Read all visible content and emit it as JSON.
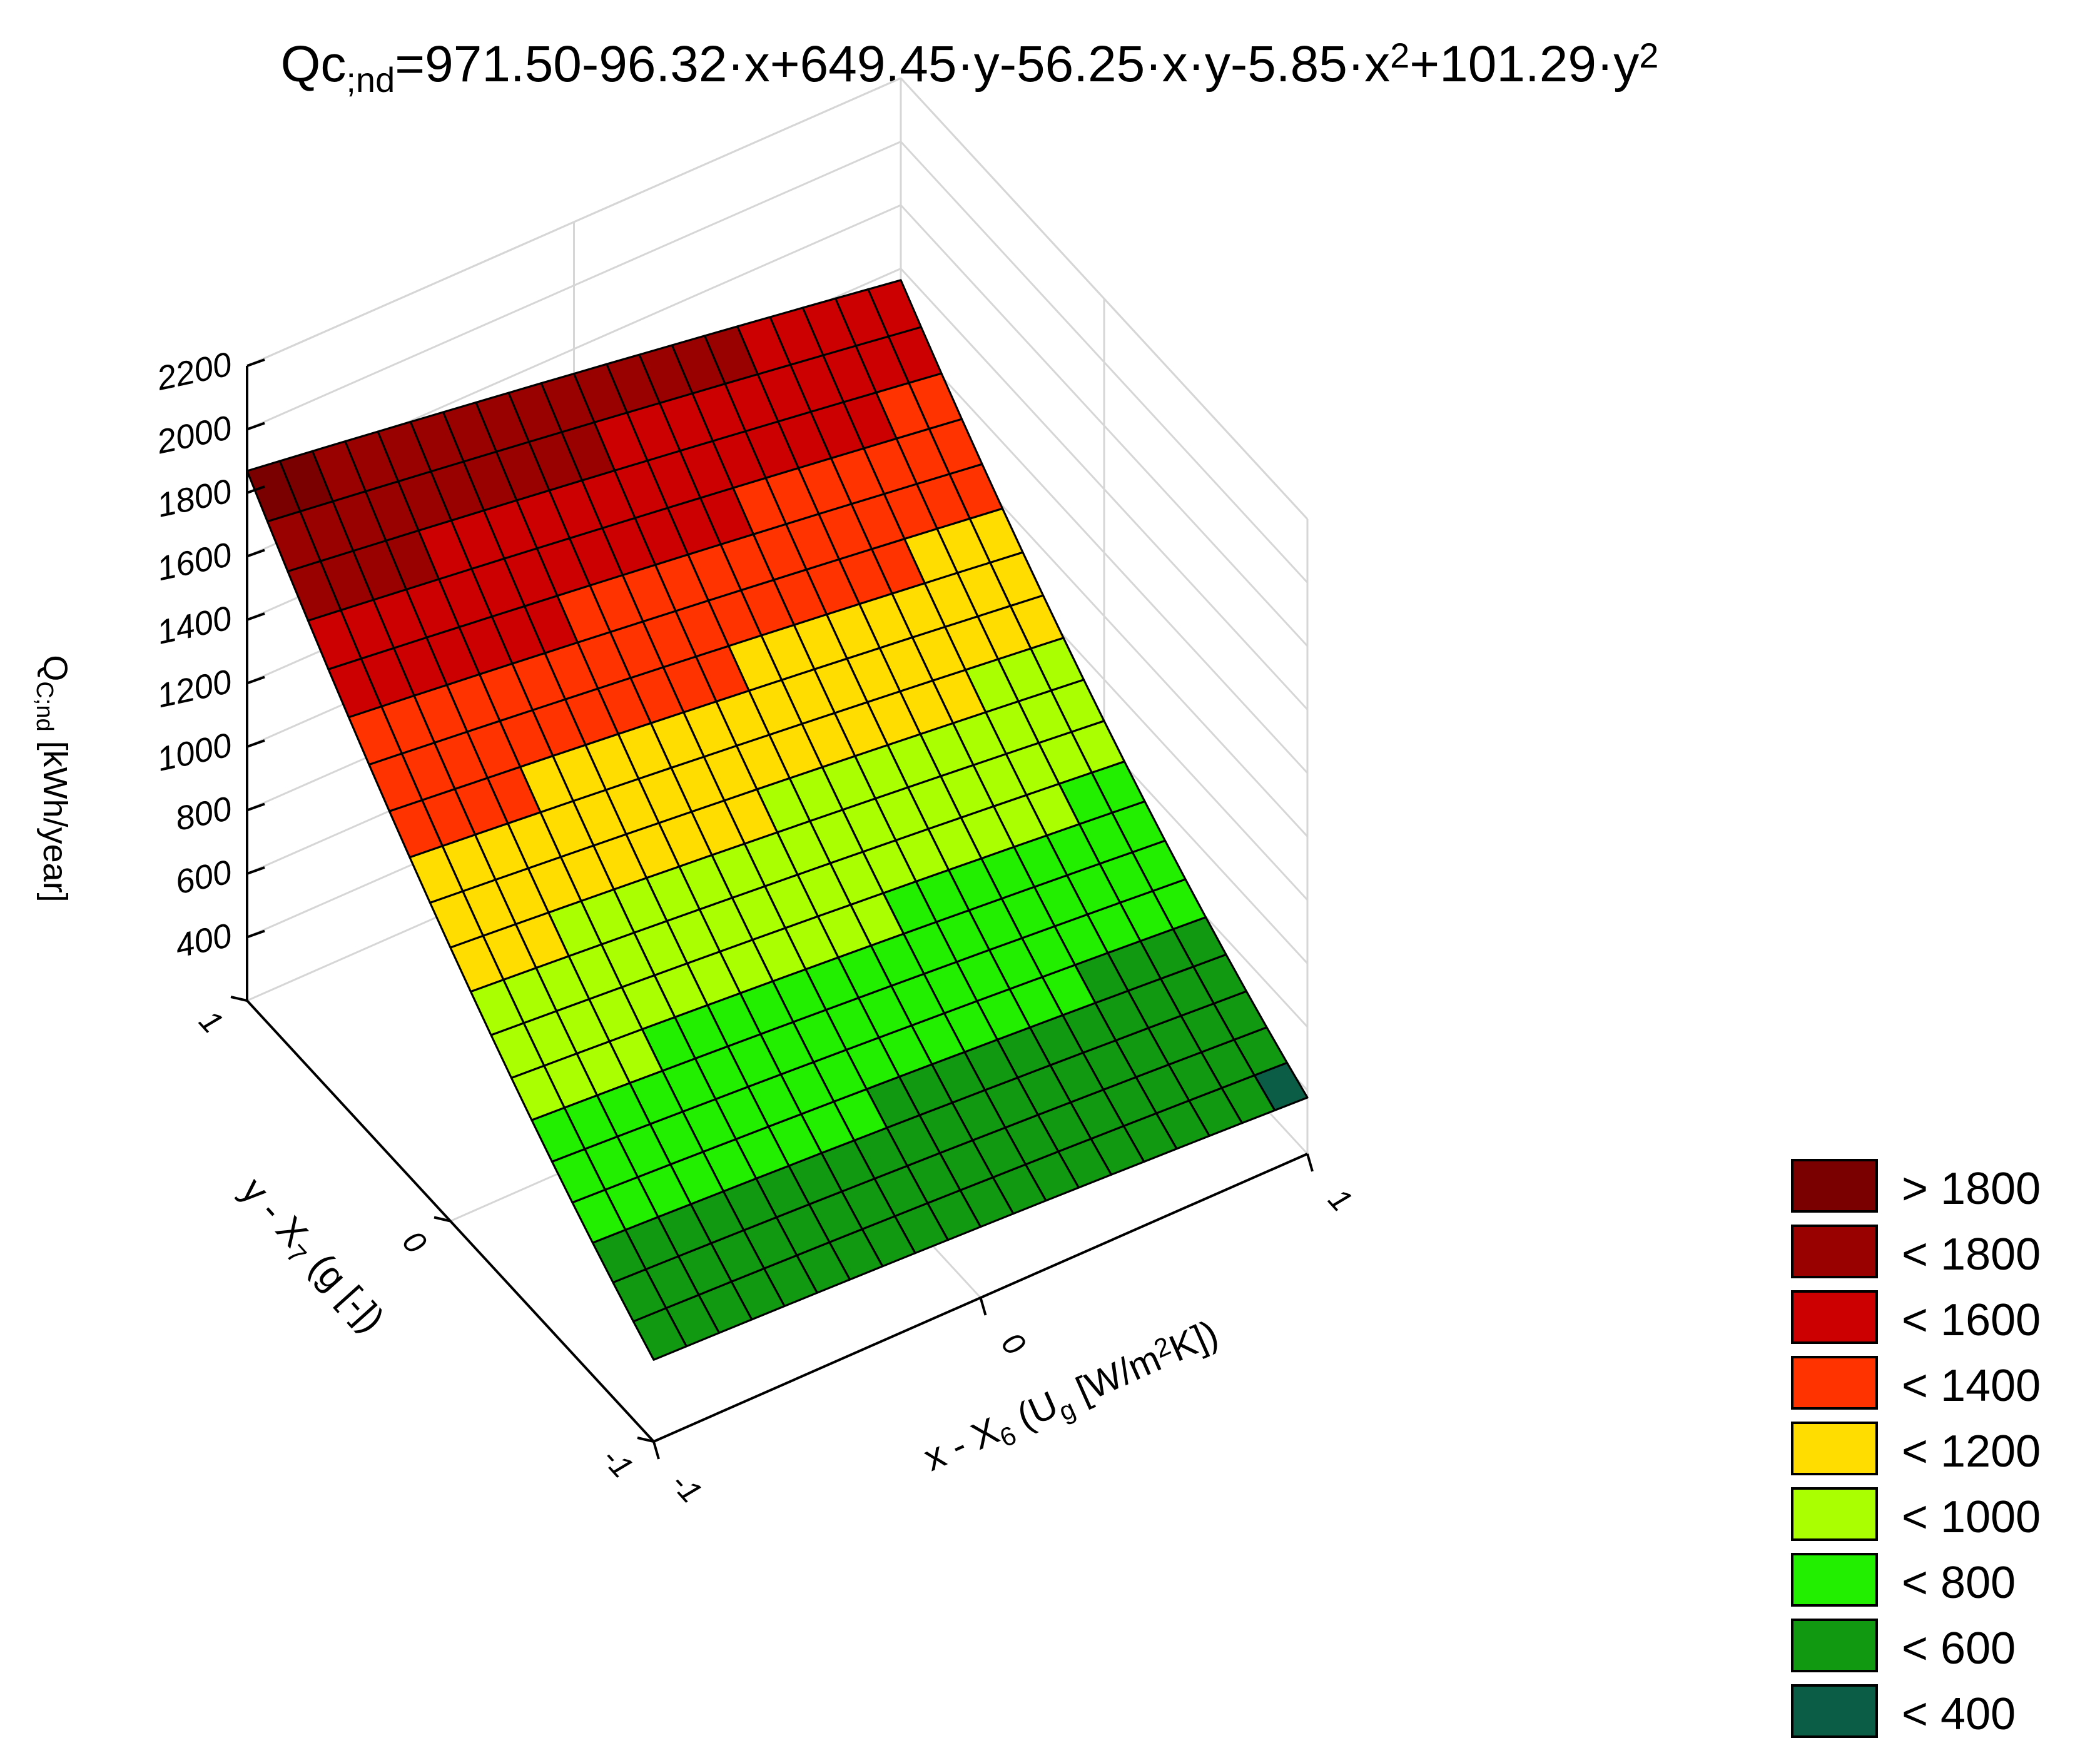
{
  "chart_data": {
    "type": "surface3d",
    "title": {
      "parts": [
        {
          "text": "Qc",
          "style": "normal"
        },
        {
          "text": ";nd",
          "style": "sub"
        },
        {
          "text": "=971.50-96.32",
          "style": "normal"
        },
        {
          "text": "·",
          "style": "normal"
        },
        {
          "text": "x+649.45",
          "style": "normal"
        },
        {
          "text": "·",
          "style": "normal"
        },
        {
          "text": "y-56.25",
          "style": "normal"
        },
        {
          "text": "·",
          "style": "normal"
        },
        {
          "text": "x",
          "style": "normal"
        },
        {
          "text": "·",
          "style": "normal"
        },
        {
          "text": "y-5.85",
          "style": "normal"
        },
        {
          "text": "·",
          "style": "normal"
        },
        {
          "text": "x",
          "style": "normal"
        },
        {
          "text": "2",
          "style": "sup"
        },
        {
          "text": "+101.29",
          "style": "normal"
        },
        {
          "text": "·",
          "style": "normal"
        },
        {
          "text": "y",
          "style": "normal"
        },
        {
          "text": "2",
          "style": "sup"
        }
      ]
    },
    "equation": {
      "const": 971.5,
      "x": -96.32,
      "y": 649.45,
      "xy": -56.25,
      "xx": -5.85,
      "yy": 101.29
    },
    "x_range": [
      -1,
      1
    ],
    "y_range": [
      -1,
      1
    ],
    "grid_divisions": 20,
    "zlim": [
      200,
      2200
    ],
    "z_ticks": [
      "2200",
      "2000",
      "1800",
      "1600",
      "1400",
      "1200",
      "1000",
      "800",
      "600",
      "400"
    ],
    "z_tick_values": [
      2200,
      2000,
      1800,
      1600,
      1400,
      1200,
      1000,
      800,
      600,
      400
    ],
    "x_ticks": [
      "-1",
      "0",
      "1"
    ],
    "x_tick_values": [
      -1,
      0,
      1
    ],
    "y_ticks": [
      "-1",
      "0",
      "1"
    ],
    "y_tick_values": [
      -1,
      0,
      1
    ],
    "zlabel": {
      "main": "Q",
      "sub": "C;nd",
      "rest": " [kWh/year]"
    },
    "xlabel": {
      "pre": "x - X",
      "sub1": "6",
      "mid": " (U",
      "sub2": "g",
      "rest1": " [W/m",
      "sup": "2",
      "rest2": "K])"
    },
    "ylabel": {
      "pre": "y - X",
      "sub1": "7",
      "rest": " (g [-])"
    },
    "legend": {
      "position": "bottom-right",
      "items": [
        {
          "label": "> 1800",
          "color": "#7a0000",
          "min": 1800
        },
        {
          "label": "< 1800",
          "color": "#990000",
          "min": 1600
        },
        {
          "label": "< 1600",
          "color": "#cc0000",
          "min": 1400
        },
        {
          "label": "< 1400",
          "color": "#ff3300",
          "min": 1200
        },
        {
          "label": "< 1200",
          "color": "#ffdd00",
          "min": 1000
        },
        {
          "label": "< 1000",
          "color": "#aaff00",
          "min": 800
        },
        {
          "label": "< 800",
          "color": "#22ee00",
          "min": 600
        },
        {
          "label": "< 600",
          "color": "#119911",
          "min": 400
        },
        {
          "label": "< 400",
          "color": "#0b5e45",
          "min": -100000
        }
      ]
    }
  }
}
